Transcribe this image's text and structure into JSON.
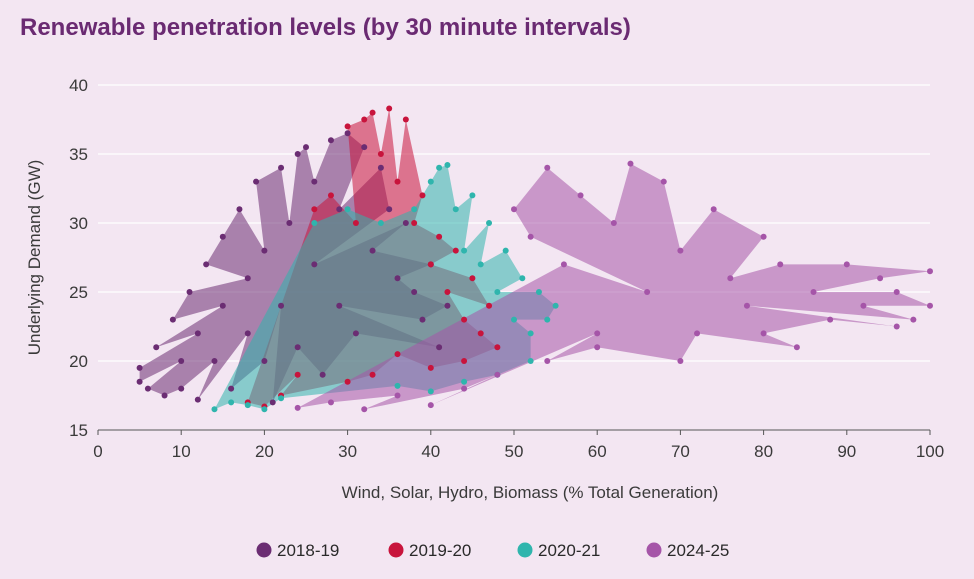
{
  "chart_data": {
    "type": "scatter",
    "title": "Renewable penetration levels (by 30 minute intervals)",
    "xlabel": "Wind, Solar, Hydro, Biomass (% Total Generation)",
    "ylabel": "Underlying Demand (GW)",
    "xlim": [
      0,
      100
    ],
    "ylim": [
      15,
      40
    ],
    "x_ticks": [
      "0",
      "10",
      "20",
      "30",
      "40",
      "50",
      "60",
      "70",
      "80",
      "90",
      "100"
    ],
    "y_ticks": [
      "15",
      "20",
      "25",
      "30",
      "35",
      "40"
    ],
    "grid": "horizontal",
    "legend_position": "bottom",
    "series": [
      {
        "name": "2018-19",
        "color": "#6b2d73",
        "points": [
          [
            5,
            18.5
          ],
          [
            5,
            19.5
          ],
          [
            6,
            18
          ],
          [
            7,
            21
          ],
          [
            8,
            17.5
          ],
          [
            9,
            23
          ],
          [
            10,
            18
          ],
          [
            10,
            20
          ],
          [
            11,
            25
          ],
          [
            12,
            22
          ],
          [
            12,
            17.2
          ],
          [
            13,
            27
          ],
          [
            14,
            20
          ],
          [
            15,
            24
          ],
          [
            15,
            29
          ],
          [
            16,
            18
          ],
          [
            17,
            31
          ],
          [
            18,
            22
          ],
          [
            18,
            26
          ],
          [
            19,
            33
          ],
          [
            20,
            20
          ],
          [
            20,
            28
          ],
          [
            21,
            17
          ],
          [
            22,
            34
          ],
          [
            22,
            24
          ],
          [
            23,
            30
          ],
          [
            24,
            35
          ],
          [
            24,
            21
          ],
          [
            25,
            35.5
          ],
          [
            26,
            27
          ],
          [
            26,
            33
          ],
          [
            27,
            19
          ],
          [
            28,
            36
          ],
          [
            29,
            31
          ],
          [
            29,
            24
          ],
          [
            30,
            36.5
          ],
          [
            31,
            22
          ],
          [
            32,
            35.5
          ],
          [
            33,
            28
          ],
          [
            34,
            34
          ],
          [
            35,
            31
          ],
          [
            36,
            26
          ],
          [
            37,
            30
          ],
          [
            38,
            25
          ],
          [
            39,
            23
          ],
          [
            40,
            27
          ],
          [
            41,
            21
          ],
          [
            42,
            24
          ]
        ]
      },
      {
        "name": "2019-20",
        "color": "#c8143c",
        "points": [
          [
            18,
            17
          ],
          [
            20,
            16.7
          ],
          [
            22,
            17.5
          ],
          [
            24,
            19
          ],
          [
            26,
            31
          ],
          [
            28,
            32
          ],
          [
            30,
            37
          ],
          [
            31,
            30
          ],
          [
            32,
            37.5
          ],
          [
            33,
            38
          ],
          [
            34,
            35
          ],
          [
            35,
            38.3
          ],
          [
            36,
            33
          ],
          [
            37,
            37.5
          ],
          [
            38,
            30
          ],
          [
            39,
            32
          ],
          [
            40,
            27
          ],
          [
            41,
            29
          ],
          [
            42,
            25
          ],
          [
            43,
            28
          ],
          [
            44,
            23
          ],
          [
            45,
            26
          ],
          [
            46,
            22
          ],
          [
            47,
            24
          ],
          [
            48,
            21
          ],
          [
            44,
            20
          ],
          [
            40,
            19.5
          ],
          [
            36,
            20.5
          ],
          [
            33,
            19
          ],
          [
            30,
            18.5
          ]
        ]
      },
      {
        "name": "2020-21",
        "color": "#2fb5ad",
        "points": [
          [
            14,
            16.5
          ],
          [
            16,
            17
          ],
          [
            18,
            16.8
          ],
          [
            20,
            16.5
          ],
          [
            22,
            17.3
          ],
          [
            26,
            30
          ],
          [
            30,
            31
          ],
          [
            34,
            30
          ],
          [
            38,
            31
          ],
          [
            40,
            33
          ],
          [
            41,
            34
          ],
          [
            42,
            34.2
          ],
          [
            43,
            31
          ],
          [
            44,
            28
          ],
          [
            45,
            32
          ],
          [
            46,
            27
          ],
          [
            47,
            30
          ],
          [
            48,
            25
          ],
          [
            49,
            28
          ],
          [
            50,
            23
          ],
          [
            51,
            26
          ],
          [
            52,
            22
          ],
          [
            53,
            25
          ],
          [
            54,
            23
          ],
          [
            55,
            24
          ],
          [
            52,
            20
          ],
          [
            48,
            19
          ],
          [
            44,
            18.5
          ],
          [
            40,
            17.8
          ],
          [
            36,
            18.2
          ]
        ]
      },
      {
        "name": "2024-25",
        "color": "#a555a8",
        "points": [
          [
            24,
            16.6
          ],
          [
            28,
            17
          ],
          [
            32,
            16.5
          ],
          [
            36,
            17.5
          ],
          [
            40,
            16.8
          ],
          [
            44,
            18
          ],
          [
            48,
            19
          ],
          [
            50,
            31
          ],
          [
            52,
            29
          ],
          [
            54,
            34
          ],
          [
            56,
            27
          ],
          [
            58,
            32
          ],
          [
            60,
            22
          ],
          [
            62,
            30
          ],
          [
            64,
            34.3
          ],
          [
            66,
            25
          ],
          [
            68,
            33
          ],
          [
            70,
            28
          ],
          [
            72,
            22
          ],
          [
            74,
            31
          ],
          [
            76,
            26
          ],
          [
            78,
            24
          ],
          [
            80,
            29
          ],
          [
            82,
            27
          ],
          [
            84,
            21
          ],
          [
            86,
            25
          ],
          [
            88,
            23
          ],
          [
            90,
            27
          ],
          [
            92,
            24
          ],
          [
            94,
            26
          ],
          [
            96,
            25
          ],
          [
            98,
            23
          ],
          [
            100,
            24
          ],
          [
            100,
            26.5
          ],
          [
            96,
            22.5
          ],
          [
            80,
            22
          ],
          [
            70,
            20
          ],
          [
            60,
            21
          ],
          [
            54,
            20
          ]
        ]
      }
    ]
  }
}
